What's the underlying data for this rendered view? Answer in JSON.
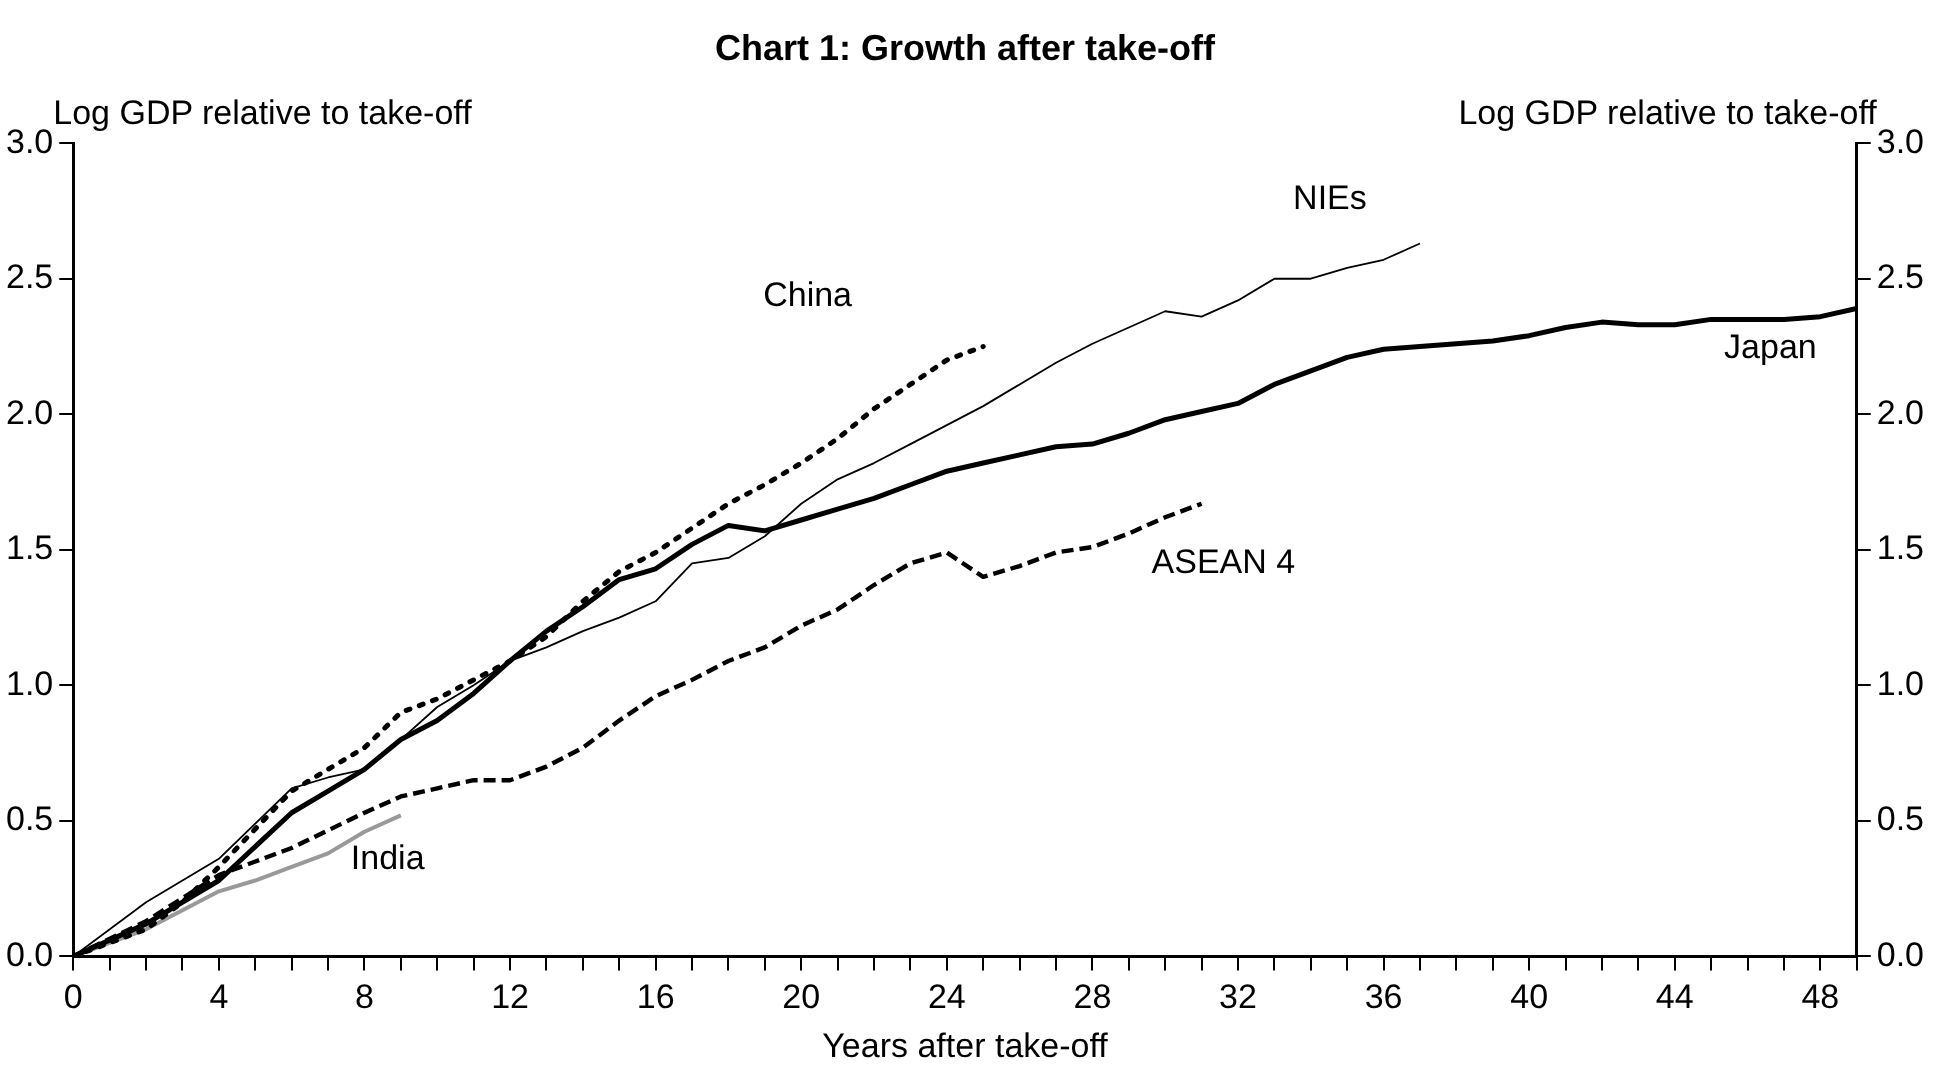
{
  "chart_data": {
    "type": "line",
    "title": "Chart 1: Growth after take-off",
    "xlabel": "Years after take-off",
    "ylabel": "Log GDP relative to take-off",
    "y2label": "Log GDP relative to take-off",
    "xlim": [
      0,
      49
    ],
    "xticks": [
      0,
      {
        "value": 1,
        "label": null
      },
      {
        "value": 2,
        "label": null
      },
      {
        "value": 3,
        "label": null
      },
      4,
      {
        "value": 5,
        "label": null
      },
      {
        "value": 6,
        "label": null
      },
      {
        "value": 7,
        "label": null
      },
      8,
      {
        "value": 9,
        "label": null
      },
      {
        "value": 10,
        "label": null
      },
      {
        "value": 11,
        "label": null
      },
      12,
      {
        "value": 13,
        "label": null
      },
      {
        "value": 14,
        "label": null
      },
      {
        "value": 15,
        "label": null
      },
      16,
      {
        "value": 17,
        "label": null
      },
      {
        "value": 18,
        "label": null
      },
      {
        "value": 19,
        "label": null
      },
      20,
      {
        "value": 21,
        "label": null
      },
      {
        "value": 22,
        "label": null
      },
      {
        "value": 23,
        "label": null
      },
      24,
      {
        "value": 25,
        "label": null
      },
      {
        "value": 26,
        "label": null
      },
      {
        "value": 27,
        "label": null
      },
      28,
      {
        "value": 29,
        "label": null
      },
      {
        "value": 30,
        "label": null
      },
      {
        "value": 31,
        "label": null
      },
      32,
      {
        "value": 33,
        "label": null
      },
      {
        "value": 34,
        "label": null
      },
      {
        "value": 35,
        "label": null
      },
      36,
      {
        "value": 37,
        "label": null
      },
      {
        "value": 38,
        "label": null
      },
      {
        "value": 39,
        "label": null
      },
      40,
      {
        "value": 41,
        "label": null
      },
      {
        "value": 42,
        "label": null
      },
      {
        "value": 43,
        "label": null
      },
      44,
      {
        "value": 45,
        "label": null
      },
      {
        "value": 46,
        "label": null
      },
      {
        "value": 47,
        "label": null
      },
      48,
      {
        "value": 49,
        "label": null
      }
    ],
    "ylim": [
      0,
      3
    ],
    "yticks": [
      {
        "value": 0,
        "label": "0.0"
      },
      0.5,
      {
        "value": 1,
        "label": "1.0"
      },
      1.5,
      {
        "value": 2,
        "label": "2.0"
      },
      2.5,
      {
        "value": 3,
        "label": "3.0"
      }
    ],
    "y2lim": [
      0,
      3
    ],
    "y2ticks": [
      {
        "value": 0,
        "label": "0.0"
      },
      0.5,
      {
        "value": 1,
        "label": "1.0"
      },
      1.5,
      {
        "value": 2,
        "label": "2.0"
      },
      2.5,
      {
        "value": 3,
        "label": "3.0"
      }
    ],
    "grid": false,
    "legend": false,
    "marker": "none",
    "series": [
      {
        "name": "Japan",
        "color": "#000000",
        "line_style": "solid",
        "x": [
          0,
          2,
          4,
          6,
          7,
          8,
          9,
          10,
          11,
          12,
          13,
          14,
          15,
          16,
          17,
          18,
          19,
          20,
          21,
          22,
          23,
          24,
          25,
          26,
          27,
          28,
          29,
          30,
          31,
          32,
          33,
          34,
          35,
          36,
          37,
          38,
          39,
          40,
          41,
          42,
          43,
          44,
          45,
          46,
          47,
          48,
          49
        ],
        "values": [
          0,
          0.12,
          0.28,
          0.53,
          0.61,
          0.69,
          0.8,
          0.87,
          0.97,
          1.09,
          1.2,
          1.29,
          1.39,
          1.43,
          1.52,
          1.59,
          1.57,
          1.61,
          1.65,
          1.69,
          1.74,
          1.79,
          1.82,
          1.85,
          1.88,
          1.89,
          1.93,
          1.98,
          2.01,
          2.04,
          2.11,
          2.16,
          2.21,
          2.24,
          2.25,
          2.26,
          2.27,
          2.29,
          2.32,
          2.34,
          2.33,
          2.33,
          2.35,
          2.35,
          2.35,
          2.36,
          2.39
        ]
      },
      {
        "name": "NIEs",
        "color": "#000000",
        "line_style": "solid",
        "x": [
          0,
          2,
          4,
          5,
          6,
          7,
          8,
          9,
          10,
          11,
          12,
          13,
          14,
          15,
          16,
          17,
          18,
          19,
          20,
          21,
          22,
          23,
          24,
          25,
          26,
          27,
          28,
          29,
          30,
          31,
          32,
          33,
          34,
          35,
          36,
          37
        ],
        "values": [
          0,
          0.2,
          0.36,
          0.49,
          0.62,
          0.66,
          0.69,
          0.8,
          0.92,
          1.0,
          1.09,
          1.14,
          1.2,
          1.25,
          1.31,
          1.45,
          1.47,
          1.55,
          1.67,
          1.76,
          1.82,
          1.89,
          1.96,
          2.03,
          2.11,
          2.19,
          2.26,
          2.32,
          2.38,
          2.36,
          2.42,
          2.5,
          2.5,
          2.54,
          2.57,
          2.63
        ]
      },
      {
        "name": "China",
        "color": "#000000",
        "line_style": "dotted",
        "x": [
          0,
          2,
          3,
          4,
          5,
          6,
          7,
          8,
          9,
          10,
          11,
          12,
          13,
          14,
          15,
          16,
          17,
          18,
          19,
          20,
          21,
          22,
          23,
          24,
          25
        ],
        "values": [
          0,
          0.1,
          0.2,
          0.33,
          0.47,
          0.61,
          0.69,
          0.77,
          0.9,
          0.95,
          1.02,
          1.09,
          1.18,
          1.31,
          1.42,
          1.49,
          1.58,
          1.67,
          1.74,
          1.82,
          1.91,
          2.02,
          2.11,
          2.2,
          2.25
        ]
      },
      {
        "name": "ASEAN 4",
        "color": "#000000",
        "line_style": "dashed",
        "x": [
          0,
          2,
          4,
          6,
          8,
          9,
          10,
          11,
          12,
          13,
          14,
          15,
          16,
          17,
          18,
          19,
          20,
          21,
          22,
          23,
          24,
          25,
          26,
          27,
          28,
          29,
          30,
          31
        ],
        "values": [
          0,
          0.13,
          0.3,
          0.4,
          0.53,
          0.59,
          0.62,
          0.65,
          0.65,
          0.7,
          0.77,
          0.87,
          0.96,
          1.02,
          1.09,
          1.14,
          1.22,
          1.28,
          1.37,
          1.45,
          1.49,
          1.4,
          1.44,
          1.49,
          1.51,
          1.56,
          1.62,
          1.67
        ]
      },
      {
        "name": "India",
        "color": "#999999",
        "line_style": "solid",
        "x": [
          0,
          2,
          4,
          5,
          6,
          7,
          8,
          9
        ],
        "values": [
          0,
          0.1,
          0.24,
          0.28,
          0.33,
          0.38,
          0.46,
          0.52
        ]
      }
    ]
  }
}
